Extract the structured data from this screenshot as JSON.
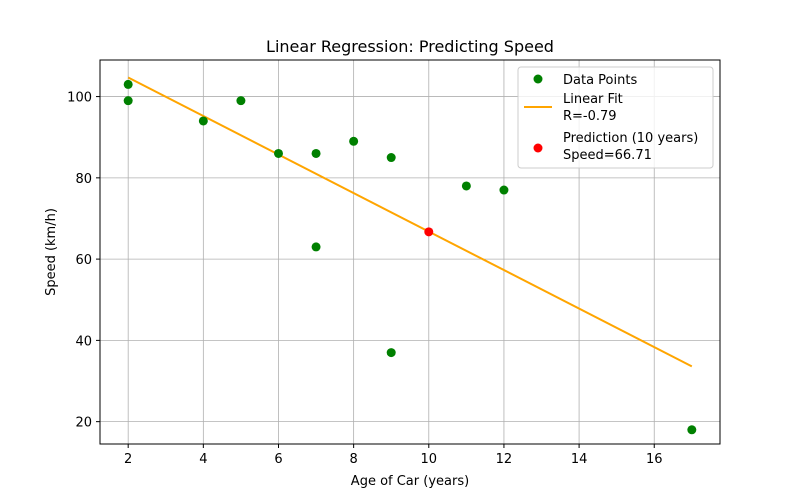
{
  "chart_data": {
    "type": "scatter",
    "title": "Linear Regression: Predicting Speed",
    "xlabel": "Age of Car (years)",
    "ylabel": "Speed (km/h)",
    "xlim": [
      1.25,
      17.75
    ],
    "ylim": [
      14.5,
      109
    ],
    "xticks": [
      2,
      4,
      6,
      8,
      10,
      12,
      14,
      16
    ],
    "yticks": [
      20,
      40,
      60,
      80,
      100
    ],
    "grid": true,
    "legend_position": "top-right",
    "colors": {
      "points": "#008000",
      "fit": "#FFA500",
      "prediction": "#FF0000"
    },
    "series": [
      {
        "name": "Data Points",
        "kind": "scatter",
        "x": [
          2,
          2,
          4,
          5,
          6,
          7,
          7,
          8,
          9,
          9,
          11,
          12,
          17
        ],
        "y": [
          103,
          99,
          94,
          99,
          86,
          86,
          63,
          89,
          85,
          37,
          78,
          77,
          18
        ]
      },
      {
        "name": "Linear Fit",
        "legend_extra": "R=-0.79",
        "kind": "line",
        "x": [
          2,
          17
        ],
        "y": [
          104.7,
          33.6
        ]
      },
      {
        "name": "Prediction (10 years)",
        "legend_extra": "Speed=66.71",
        "kind": "scatter",
        "x": [
          10
        ],
        "y": [
          66.71
        ]
      }
    ]
  }
}
